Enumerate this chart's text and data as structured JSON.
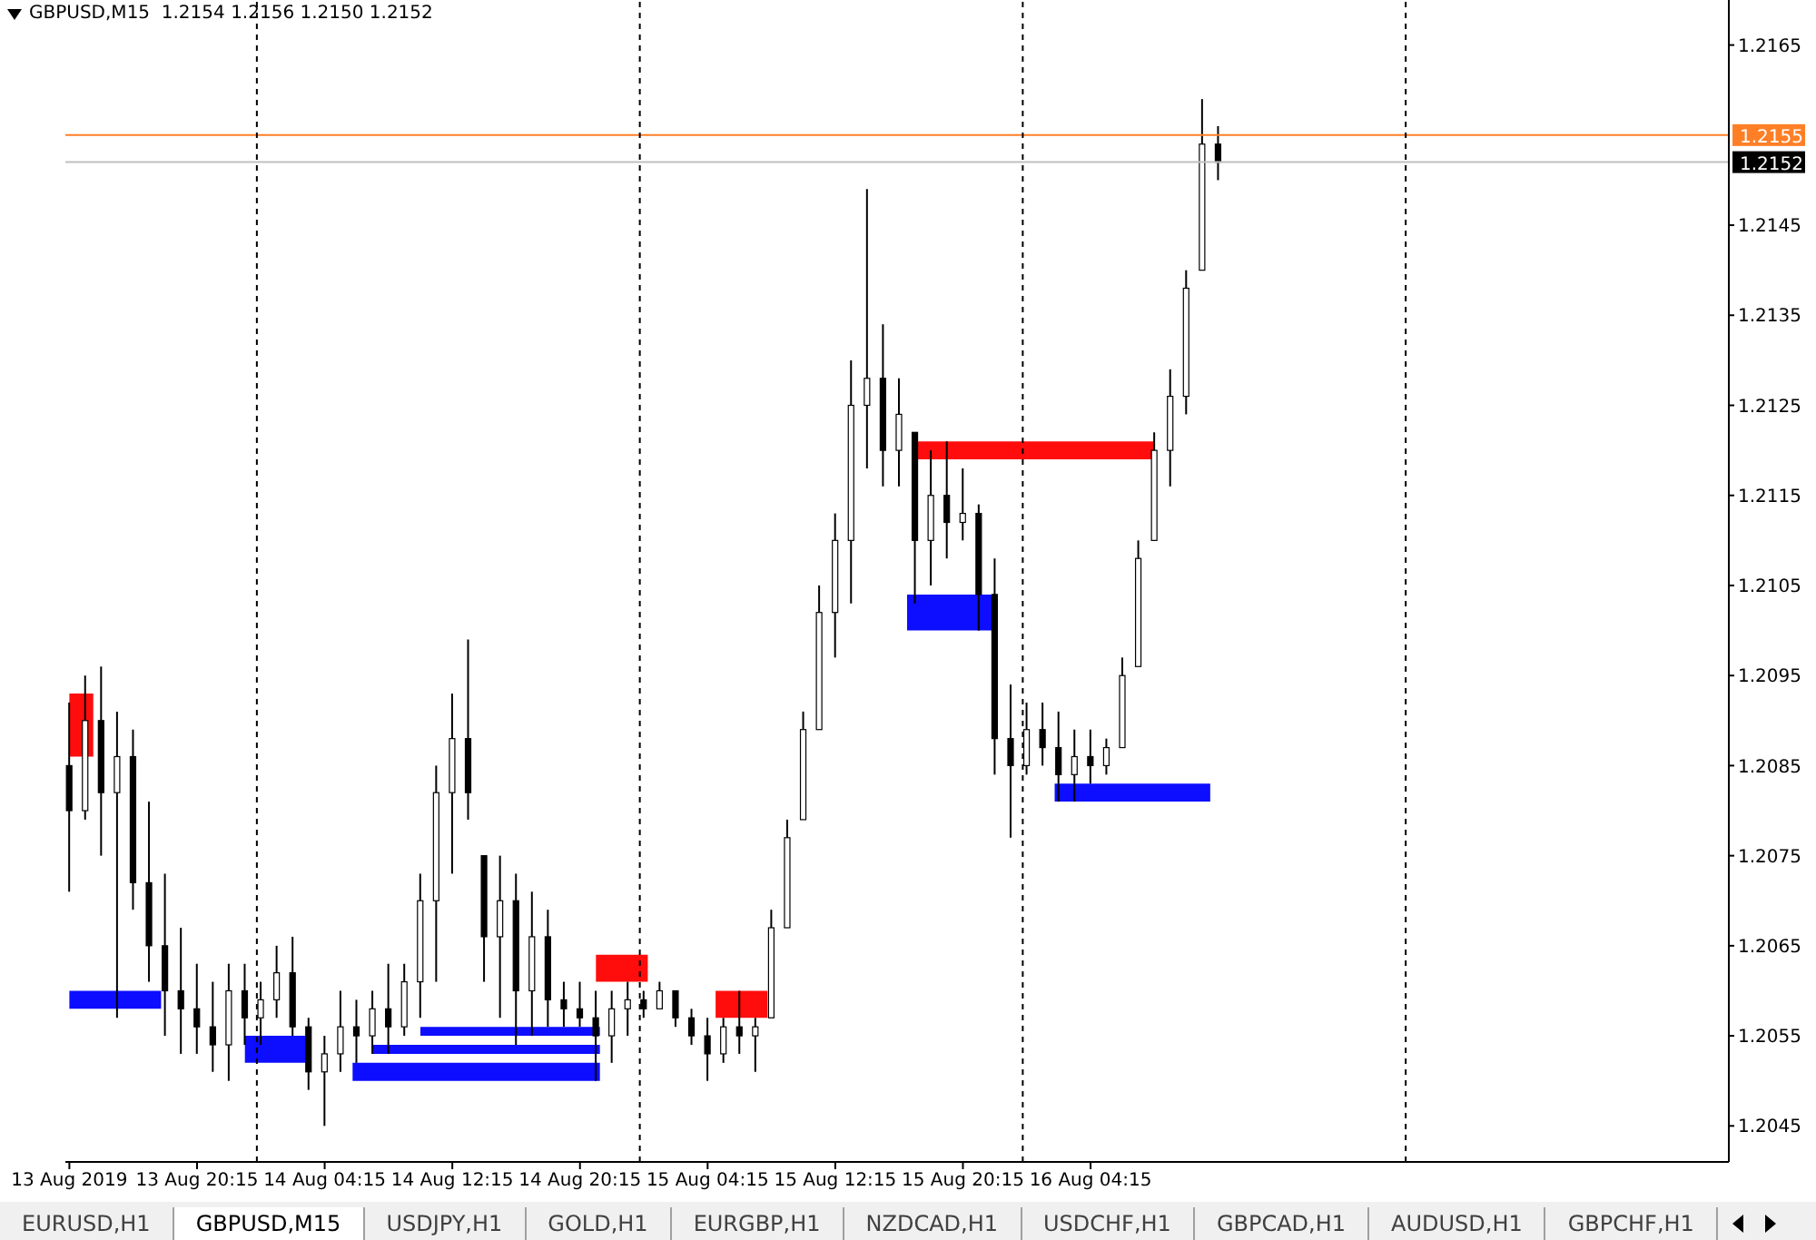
{
  "chart_data": {
    "type": "candlestick",
    "title": "GBPUSD,M15  1.2154 1.2156 1.2150 1.2152",
    "color": "#000000",
    "x": [
      "2019-08-13T12:15",
      "2019-08-13T13:15",
      "2019-08-13T14:15",
      "2019-08-13T15:15",
      "2019-08-13T16:15",
      "2019-08-13T17:15",
      "2019-08-13T18:15",
      "2019-08-13T19:15",
      "2019-08-13T20:15",
      "2019-08-13T21:15",
      "2019-08-13T22:15",
      "2019-08-13T23:15",
      "2019-08-14T00:15",
      "2019-08-14T01:15",
      "2019-08-14T02:15",
      "2019-08-14T03:15",
      "2019-08-14T04:15",
      "2019-08-14T05:15",
      "2019-08-14T06:15",
      "2019-08-14T07:15",
      "2019-08-14T08:15",
      "2019-08-14T09:15",
      "2019-08-14T10:15",
      "2019-08-14T11:15",
      "2019-08-14T12:15",
      "2019-08-14T13:15",
      "2019-08-14T14:15",
      "2019-08-14T15:15",
      "2019-08-14T16:15",
      "2019-08-14T17:15",
      "2019-08-14T18:15",
      "2019-08-14T19:15",
      "2019-08-14T20:15",
      "2019-08-14T21:15",
      "2019-08-14T22:15",
      "2019-08-14T23:15",
      "2019-08-15T00:15",
      "2019-08-15T01:15",
      "2019-08-15T02:15",
      "2019-08-15T03:15",
      "2019-08-15T04:15",
      "2019-08-15T05:15",
      "2019-08-15T06:15",
      "2019-08-15T07:15",
      "2019-08-15T08:15",
      "2019-08-15T09:15",
      "2019-08-15T10:15",
      "2019-08-15T11:15",
      "2019-08-15T12:15",
      "2019-08-15T13:15",
      "2019-08-15T14:15",
      "2019-08-15T15:15",
      "2019-08-15T16:15",
      "2019-08-15T17:15",
      "2019-08-15T18:15",
      "2019-08-15T19:15",
      "2019-08-15T20:15",
      "2019-08-15T21:15",
      "2019-08-15T22:15",
      "2019-08-15T23:15",
      "2019-08-16T00:15",
      "2019-08-16T01:15",
      "2019-08-16T02:15",
      "2019-08-16T03:15",
      "2019-08-16T04:15",
      "2019-08-16T05:15",
      "2019-08-16T06:15",
      "2019-08-16T07:15",
      "2019-08-16T08:15",
      "2019-08-16T09:15",
      "2019-08-16T10:15",
      "2019-08-16T11:15",
      "2019-08-16T12:15"
    ],
    "ohlc": [
      [
        1.2085,
        1.2092,
        1.2071,
        1.208
      ],
      [
        1.208,
        1.2095,
        1.2079,
        1.209
      ],
      [
        1.209,
        1.2096,
        1.2075,
        1.2082
      ],
      [
        1.2082,
        1.2091,
        1.2057,
        1.2086
      ],
      [
        1.2086,
        1.2089,
        1.2069,
        1.2072
      ],
      [
        1.2072,
        1.2081,
        1.2061,
        1.2065
      ],
      [
        1.2065,
        1.2073,
        1.2055,
        1.206
      ],
      [
        1.206,
        1.2067,
        1.2053,
        1.2058
      ],
      [
        1.2058,
        1.2063,
        1.2053,
        1.2056
      ],
      [
        1.2056,
        1.2061,
        1.2051,
        1.2054
      ],
      [
        1.2054,
        1.2063,
        1.205,
        1.206
      ],
      [
        1.206,
        1.2063,
        1.2054,
        1.2057
      ],
      [
        1.2057,
        1.2061,
        1.2054,
        1.2059
      ],
      [
        1.2059,
        1.2065,
        1.2057,
        1.2062
      ],
      [
        1.2062,
        1.2066,
        1.2055,
        1.2056
      ],
      [
        1.2056,
        1.2057,
        1.2049,
        1.2051
      ],
      [
        1.2051,
        1.2055,
        1.2045,
        1.2053
      ],
      [
        1.2053,
        1.206,
        1.2051,
        1.2056
      ],
      [
        1.2056,
        1.2059,
        1.2052,
        1.2055
      ],
      [
        1.2055,
        1.206,
        1.2053,
        1.2058
      ],
      [
        1.2058,
        1.2063,
        1.2053,
        1.2056
      ],
      [
        1.2056,
        1.2063,
        1.2055,
        1.2061
      ],
      [
        1.2061,
        1.2073,
        1.2057,
        1.207
      ],
      [
        1.207,
        1.2085,
        1.2061,
        1.2082
      ],
      [
        1.2082,
        1.2093,
        1.2073,
        1.2088
      ],
      [
        1.2088,
        1.2099,
        1.2079,
        1.2082
      ],
      [
        1.2075,
        1.2075,
        1.2061,
        1.2066
      ],
      [
        1.2066,
        1.2075,
        1.2057,
        1.207
      ],
      [
        1.207,
        1.2073,
        1.2054,
        1.206
      ],
      [
        1.206,
        1.2071,
        1.2055,
        1.2066
      ],
      [
        1.2066,
        1.2069,
        1.2056,
        1.2059
      ],
      [
        1.2059,
        1.2061,
        1.2056,
        1.2058
      ],
      [
        1.2058,
        1.2061,
        1.2056,
        1.2057
      ],
      [
        1.2057,
        1.206,
        1.205,
        1.2055
      ],
      [
        1.2055,
        1.206,
        1.2052,
        1.2058
      ],
      [
        1.2058,
        1.2061,
        1.2055,
        1.2059
      ],
      [
        1.2059,
        1.206,
        1.2057,
        1.2058
      ],
      [
        1.2058,
        1.2061,
        1.2058,
        1.206
      ],
      [
        1.206,
        1.206,
        1.2056,
        1.2057
      ],
      [
        1.2057,
        1.2058,
        1.2054,
        1.2055
      ],
      [
        1.2055,
        1.2057,
        1.205,
        1.2053
      ],
      [
        1.2053,
        1.2057,
        1.2052,
        1.2056
      ],
      [
        1.2056,
        1.206,
        1.2053,
        1.2055
      ],
      [
        1.2055,
        1.2057,
        1.2051,
        1.2056
      ],
      [
        1.2057,
        1.2069,
        1.2057,
        1.2067
      ],
      [
        1.2067,
        1.2079,
        1.2067,
        1.2077
      ],
      [
        1.2079,
        1.2091,
        1.2079,
        1.2089
      ],
      [
        1.2089,
        1.2105,
        1.2089,
        1.2102
      ],
      [
        1.2102,
        1.2113,
        1.2097,
        1.211
      ],
      [
        1.211,
        1.213,
        1.2103,
        1.2125
      ],
      [
        1.2125,
        1.2149,
        1.2118,
        1.2128
      ],
      [
        1.2128,
        1.2134,
        1.2116,
        1.212
      ],
      [
        1.212,
        1.2128,
        1.2116,
        1.2124
      ],
      [
        1.2122,
        1.2122,
        1.2103,
        1.211
      ],
      [
        1.211,
        1.212,
        1.2105,
        1.2115
      ],
      [
        1.2115,
        1.2121,
        1.2108,
        1.2112
      ],
      [
        1.2112,
        1.2118,
        1.211,
        1.2113
      ],
      [
        1.2113,
        1.2114,
        1.21,
        1.2104
      ],
      [
        1.2104,
        1.2108,
        1.2084,
        1.2088
      ],
      [
        1.2088,
        1.2094,
        1.2077,
        1.2085
      ],
      [
        1.2085,
        1.2092,
        1.2084,
        1.2089
      ],
      [
        1.2089,
        1.2092,
        1.2085,
        1.2087
      ],
      [
        1.2087,
        1.2091,
        1.2081,
        1.2084
      ],
      [
        1.2084,
        1.2089,
        1.2081,
        1.2086
      ],
      [
        1.2086,
        1.2089,
        1.2083,
        1.2085
      ],
      [
        1.2085,
        1.2088,
        1.2084,
        1.2087
      ],
      [
        1.2087,
        1.2097,
        1.2087,
        1.2095
      ],
      [
        1.2096,
        1.211,
        1.2096,
        1.2108
      ],
      [
        1.211,
        1.2122,
        1.211,
        1.212
      ],
      [
        1.212,
        1.2129,
        1.2116,
        1.2126
      ],
      [
        1.2126,
        1.214,
        1.2124,
        1.2138
      ],
      [
        1.214,
        1.2159,
        1.214,
        1.2154
      ],
      [
        1.2154,
        1.2156,
        1.215,
        1.2152
      ]
    ],
    "series": [
      {
        "type": "area",
        "color": "#ff0000",
        "x": [
          "2019-08-13T12:15",
          "2019-08-13T13:45"
        ],
        "values": [
          null,
          null
        ],
        "upper": [
          1.2093,
          1.2093
        ],
        "lower": [
          1.2086,
          1.2086
        ]
      },
      {
        "type": "area",
        "color": "#0000ff",
        "x": [
          "2019-08-13T12:15",
          "2019-08-13T18:00"
        ],
        "values": [
          null,
          null
        ],
        "upper": [
          1.206,
          1.206
        ],
        "lower": [
          1.2058,
          1.2058
        ]
      },
      {
        "type": "area",
        "color": "#0000ff",
        "x": [
          "2019-08-13T23:15",
          "2019-08-14T03:15"
        ],
        "values": [
          null,
          null
        ],
        "upper": [
          1.2055,
          1.2055
        ],
        "lower": [
          1.2052,
          1.2052
        ]
      },
      {
        "type": "area",
        "color": "#0000ff",
        "x": [
          "2019-08-14T06:00",
          "2019-08-14T21:30"
        ],
        "values": [
          null,
          null
        ],
        "upper": [
          1.2052,
          1.2052
        ],
        "lower": [
          1.205,
          1.205
        ]
      },
      {
        "type": "area",
        "color": "#0000ff",
        "x": [
          "2019-08-14T07:15",
          "2019-08-14T21:30"
        ],
        "values": [
          null,
          null
        ],
        "upper": [
          1.2054,
          1.2054
        ],
        "lower": [
          1.2053,
          1.2053
        ]
      },
      {
        "type": "area",
        "color": "#0000ff",
        "x": [
          "2019-08-14T10:15",
          "2019-08-14T21:30"
        ],
        "values": [
          null,
          null
        ],
        "upper": [
          1.2056,
          1.2056
        ],
        "lower": [
          1.2055,
          1.2055
        ]
      },
      {
        "type": "area",
        "color": "#ff0000",
        "x": [
          "2019-08-14T21:15",
          "2019-08-15T00:30"
        ],
        "values": [
          null,
          null
        ],
        "upper": [
          1.2064,
          1.2064
        ],
        "lower": [
          1.2061,
          1.2061
        ]
      },
      {
        "type": "area",
        "color": "#ff0000",
        "x": [
          "2019-08-15T04:45",
          "2019-08-15T08:00"
        ],
        "values": [
          null,
          null
        ],
        "upper": [
          1.206,
          1.206
        ],
        "lower": [
          1.2057,
          1.2057
        ]
      },
      {
        "type": "area",
        "color": "#0000ff",
        "x": [
          "2019-08-15T16:45",
          "2019-08-15T22:15"
        ],
        "values": [
          null,
          null
        ],
        "upper": [
          1.2104,
          1.2104
        ],
        "lower": [
          1.21,
          1.21
        ]
      },
      {
        "type": "area",
        "color": "#ff0000",
        "x": [
          "2019-08-15T17:15",
          "2019-08-16T08:15"
        ],
        "values": [
          null,
          null
        ],
        "upper": [
          1.2121,
          1.2121
        ],
        "lower": [
          1.2119,
          1.2119
        ]
      },
      {
        "type": "area",
        "color": "#0000ff",
        "x": [
          "2019-08-16T02:00",
          "2019-08-16T11:45"
        ],
        "values": [
          null,
          null
        ],
        "upper": [
          1.2083,
          1.2083
        ],
        "lower": [
          1.2081,
          1.2081
        ]
      }
    ],
    "xlim": [
      "2019-08-13T12:00",
      "2019-08-17T20:15"
    ],
    "xticks": [
      {
        "value": "2019-08-13T12:15",
        "label": "13 Aug 2019"
      },
      {
        "value": "2019-08-13T20:15",
        "label": "13 Aug 20:15"
      },
      {
        "value": "2019-08-14T04:15",
        "label": "14 Aug 04:15"
      },
      {
        "value": "2019-08-14T12:15",
        "label": "14 Aug 12:15"
      },
      {
        "value": "2019-08-14T20:15",
        "label": "14 Aug 20:15"
      },
      {
        "value": "2019-08-15T04:15",
        "label": "15 Aug 04:15"
      },
      {
        "value": "2019-08-15T12:15",
        "label": "15 Aug 12:15"
      },
      {
        "value": "2019-08-15T20:15",
        "label": "15 Aug 20:15"
      },
      {
        "value": "2019-08-16T04:15",
        "label": "16 Aug 04:15"
      }
    ],
    "ylim": [
      1.2041,
      1.217
    ],
    "yticks": [
      1.2045,
      1.2055,
      1.2065,
      1.2075,
      1.2085,
      1.2095,
      1.2105,
      1.2115,
      1.2125,
      1.2135,
      1.2145,
      1.2165
    ],
    "ref_lines": [
      {
        "axis": "y",
        "value": 1.2155,
        "label": "1.2155",
        "color": "#ff7f27"
      },
      {
        "axis": "y",
        "value": 1.2152,
        "label": "1.2152",
        "color": "#c0c0c0"
      },
      {
        "axis": "x",
        "value": "2019-08-14T00:00",
        "color": "#000000",
        "line_style": "dashed"
      },
      {
        "axis": "x",
        "value": "2019-08-15T00:00",
        "color": "#000000",
        "line_style": "dashed"
      },
      {
        "axis": "x",
        "value": "2019-08-16T00:00",
        "color": "#000000",
        "line_style": "dashed"
      },
      {
        "axis": "x",
        "value": "2019-08-17T00:00",
        "color": "#000000",
        "line_style": "dashed"
      }
    ],
    "annotations": [
      "EURUSD,H1",
      "GBPUSD,M15",
      "USDJPY,H1",
      "GOLD,H1",
      "EURGBP,H1",
      "NZDCAD,H1",
      "USDCHF,H1",
      "GBPCAD,H1",
      "AUDUSD,H1",
      "GBPCHF,H1"
    ],
    "grid": false,
    "legend": false
  }
}
